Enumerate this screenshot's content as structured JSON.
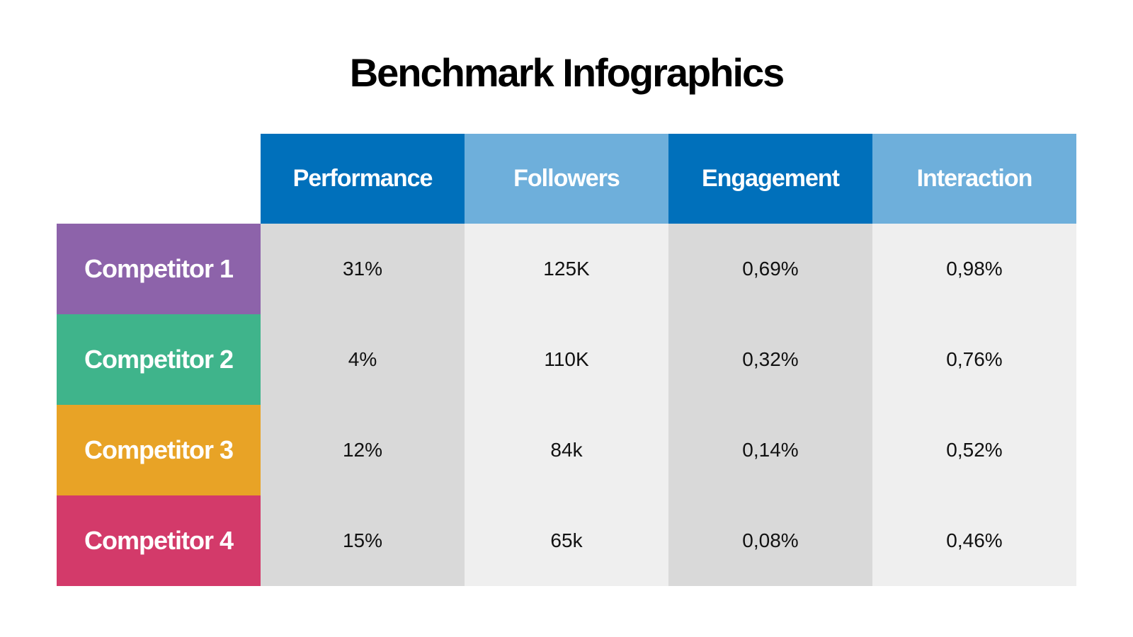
{
  "title": "Benchmark Infographics",
  "table": {
    "headers": [
      "Performance",
      "Followers",
      "Engagement",
      "Interaction"
    ],
    "rows": [
      {
        "label": "Competitor 1",
        "cells": [
          "31%",
          "125K",
          "0,69%",
          "0,98%"
        ]
      },
      {
        "label": "Competitor 2",
        "cells": [
          "4%",
          "110K",
          "0,32%",
          "0,76%"
        ]
      },
      {
        "label": "Competitor 3",
        "cells": [
          "12%",
          "84k",
          "0,14%",
          "0,52%"
        ]
      },
      {
        "label": "Competitor 4",
        "cells": [
          "15%",
          "65k",
          "0,08%",
          "0,46%"
        ]
      }
    ]
  }
}
